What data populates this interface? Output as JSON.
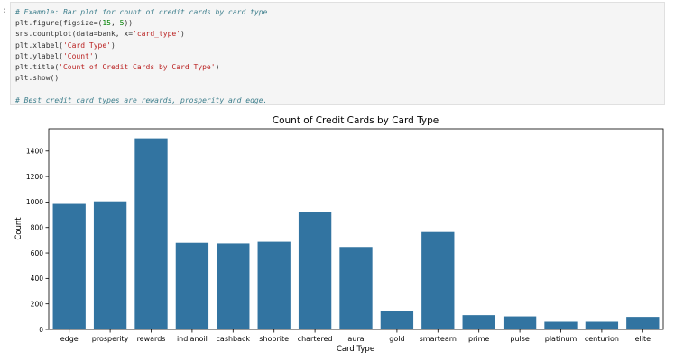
{
  "cell": {
    "prompt": ":",
    "code_lines": [
      [
        {
          "t": "cm",
          "v": "# Example: Bar plot for count of credit cards by card type"
        }
      ],
      [
        {
          "t": "",
          "v": "plt.figure(figsize=("
        },
        {
          "t": "num",
          "v": "15"
        },
        {
          "t": "",
          "v": ", "
        },
        {
          "t": "num",
          "v": "5"
        },
        {
          "t": "",
          "v": "))"
        }
      ],
      [
        {
          "t": "",
          "v": "sns.countplot(data=bank, x="
        },
        {
          "t": "str",
          "v": "'card_type'"
        },
        {
          "t": "",
          "v": ")"
        }
      ],
      [
        {
          "t": "",
          "v": "plt.xlabel("
        },
        {
          "t": "str",
          "v": "'Card Type'"
        },
        {
          "t": "",
          "v": ")"
        }
      ],
      [
        {
          "t": "",
          "v": "plt.ylabel("
        },
        {
          "t": "str",
          "v": "'Count'"
        },
        {
          "t": "",
          "v": ")"
        }
      ],
      [
        {
          "t": "",
          "v": "plt.title("
        },
        {
          "t": "str",
          "v": "'Count of Credit Cards by Card Type'"
        },
        {
          "t": "",
          "v": ")"
        }
      ],
      [
        {
          "t": "",
          "v": "plt.show()"
        }
      ],
      [
        {
          "t": "",
          "v": ""
        }
      ],
      [
        {
          "t": "cm",
          "v": "# Best credit card types are rewards, prosperity and edge."
        }
      ]
    ]
  },
  "chart_data": {
    "type": "bar",
    "title": "Count of Credit Cards by Card Type",
    "xlabel": "Card Type",
    "ylabel": "Count",
    "categories": [
      "edge",
      "prosperity",
      "rewards",
      "indianoil",
      "cashback",
      "shoprite",
      "chartered",
      "aura",
      "gold",
      "smartearn",
      "prime",
      "pulse",
      "platinum",
      "centurion",
      "elite"
    ],
    "values": [
      985,
      1005,
      1500,
      680,
      675,
      688,
      925,
      648,
      145,
      765,
      112,
      102,
      60,
      60,
      98
    ],
    "ylim": [
      0,
      1575
    ],
    "yticks": [
      0,
      200,
      400,
      600,
      800,
      1000,
      1200,
      1400
    ],
    "bar_color": "#3274a1",
    "grid": false
  }
}
